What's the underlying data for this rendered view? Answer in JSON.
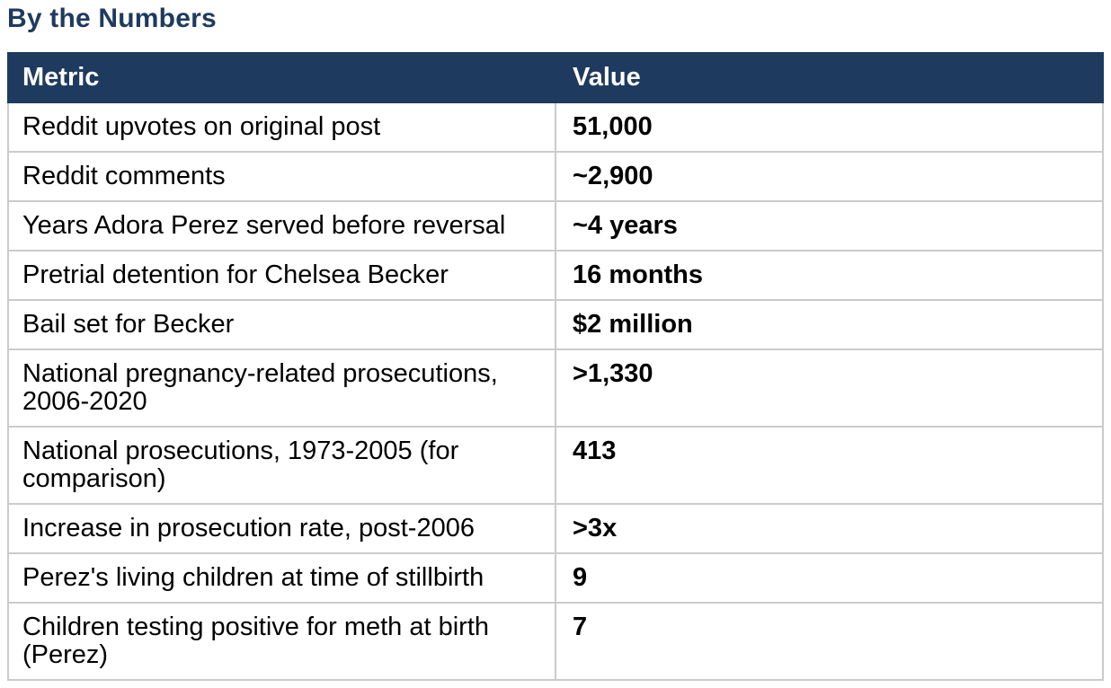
{
  "title": "By the Numbers",
  "table": {
    "headers": {
      "metric": "Metric",
      "value": "Value"
    },
    "rows": [
      {
        "metric": "Reddit upvotes on original post",
        "value": "51,000"
      },
      {
        "metric": "Reddit comments",
        "value": "~2,900"
      },
      {
        "metric": "Years Adora Perez served before reversal",
        "value": "~4 years"
      },
      {
        "metric": "Pretrial detention for Chelsea Becker",
        "value": "16 months"
      },
      {
        "metric": "Bail set for Becker",
        "value": "$2 million"
      },
      {
        "metric": "National pregnancy-related prosecutions, 2006-2020",
        "value": ">1,330"
      },
      {
        "metric": "National prosecutions, 1973-2005 (for comparison)",
        "value": "413"
      },
      {
        "metric": "Increase in prosecution rate, post-2006",
        "value": ">3x"
      },
      {
        "metric": "Perez's living children at time of stillbirth",
        "value": "9"
      },
      {
        "metric": "Children testing positive for meth at birth (Perez)",
        "value": "7"
      }
    ]
  },
  "colors": {
    "title_text": "#1e3a5f",
    "header_bg": "#1e3a5f",
    "header_text": "#ffffff",
    "row_border": "#cbcbcb",
    "cell_text": "#000000",
    "background": "#ffffff"
  }
}
